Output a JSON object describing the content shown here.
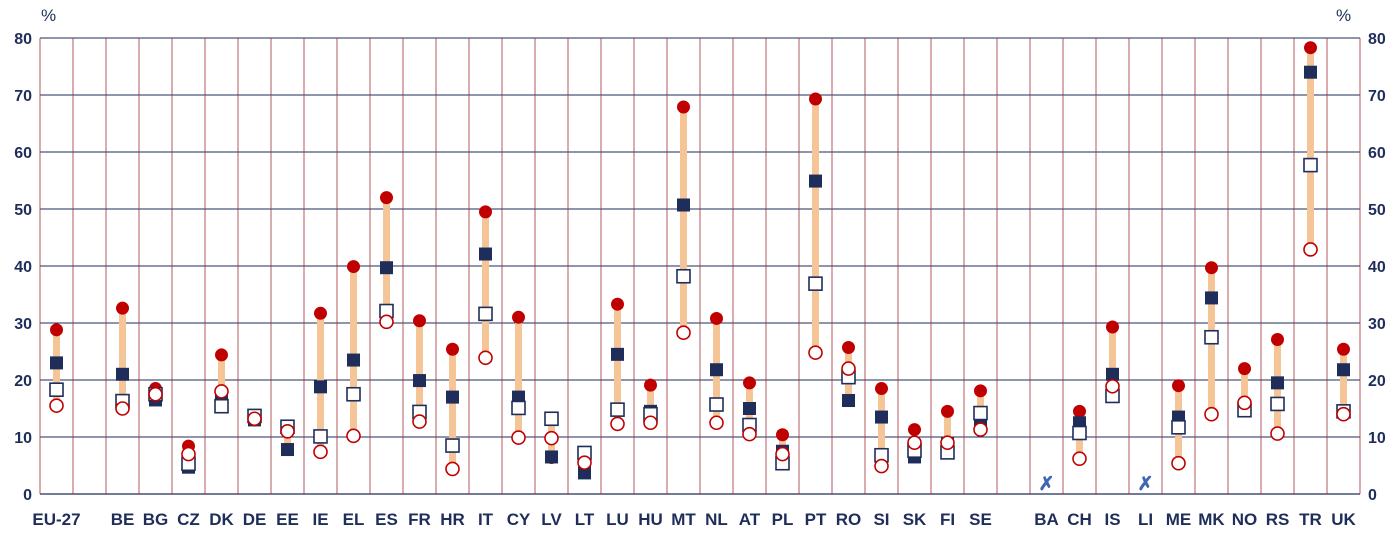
{
  "chart_data": {
    "type": "dot-range",
    "unit_left": "%",
    "unit_right": "%",
    "ylim": [
      0,
      80
    ],
    "yticks": [
      0,
      10,
      20,
      30,
      40,
      50,
      60,
      70,
      80
    ],
    "categories": [
      "EU-27",
      "",
      "BE",
      "BG",
      "CZ",
      "DK",
      "DE",
      "EE",
      "IE",
      "EL",
      "ES",
      "FR",
      "HR",
      "IT",
      "CY",
      "LV",
      "LT",
      "LU",
      "HU",
      "MT",
      "NL",
      "AT",
      "PL",
      "PT",
      "RO",
      "SI",
      "SK",
      "FI",
      "SE",
      "",
      "BA",
      "CH",
      "IS",
      "LI",
      "ME",
      "MK",
      "NO",
      "RS",
      "TR",
      "UK"
    ],
    "series": [
      {
        "marker": "filled-circle",
        "color": "#c00000",
        "values": [
          28.8,
          null,
          32.6,
          18.5,
          8.4,
          24.4,
          13.0,
          11.0,
          31.7,
          39.9,
          52.0,
          30.4,
          25.4,
          49.5,
          31.0,
          6.4,
          4.2,
          33.3,
          19.1,
          67.9,
          30.8,
          19.5,
          10.4,
          69.3,
          25.7,
          18.5,
          11.3,
          14.5,
          18.1,
          null,
          null,
          14.5,
          29.3,
          null,
          19.0,
          39.7,
          22.0,
          27.1,
          78.3,
          25.4
        ]
      },
      {
        "marker": "filled-square",
        "color": "#1f2d5a",
        "values": [
          23.0,
          null,
          21.0,
          16.5,
          4.7,
          17.3,
          13.0,
          7.8,
          18.8,
          23.5,
          39.7,
          19.9,
          17.0,
          42.1,
          17.0,
          6.5,
          3.7,
          24.5,
          14.5,
          50.7,
          21.8,
          15.0,
          7.5,
          54.9,
          16.4,
          13.5,
          6.5,
          8.8,
          12.5,
          null,
          null,
          12.5,
          21.0,
          null,
          13.5,
          34.4,
          15.5,
          19.5,
          74.0,
          21.8
        ]
      },
      {
        "marker": "open-square",
        "color": "#1f2d5a",
        "values": [
          18.3,
          null,
          16.3,
          17.5,
          5.3,
          15.4,
          13.7,
          11.8,
          10.1,
          17.5,
          32.1,
          14.4,
          8.5,
          31.6,
          15.1,
          13.2,
          7.2,
          14.8,
          14.0,
          38.2,
          15.7,
          12.1,
          5.4,
          36.9,
          20.5,
          6.8,
          7.6,
          7.3,
          14.2,
          null,
          null,
          10.7,
          17.2,
          null,
          11.7,
          27.5,
          14.7,
          15.8,
          57.7,
          14.5
        ]
      },
      {
        "marker": "open-circle",
        "color": "#c00000",
        "values": [
          15.5,
          null,
          15.0,
          17.5,
          7.0,
          18.0,
          13.2,
          11.0,
          7.4,
          10.2,
          30.2,
          12.7,
          4.4,
          23.9,
          9.9,
          9.8,
          5.5,
          12.3,
          12.5,
          28.3,
          12.5,
          10.5,
          7.0,
          24.8,
          22.0,
          4.9,
          9.0,
          9.0,
          11.3,
          null,
          null,
          6.2,
          18.9,
          null,
          5.4,
          14.0,
          16.0,
          10.6,
          42.9,
          14.0
        ]
      }
    ],
    "range_bar_color": "#f5c597",
    "missing_marker": "✗",
    "missing_categories": [
      "BA",
      "LI"
    ],
    "grid": true
  }
}
